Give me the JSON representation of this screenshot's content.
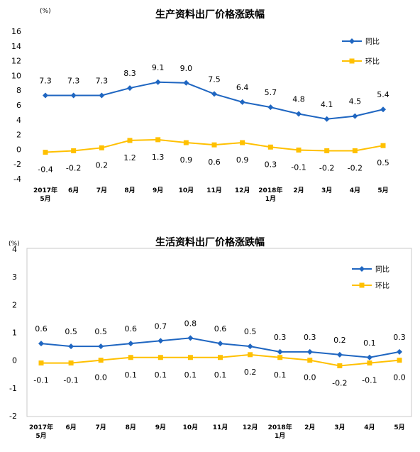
{
  "colors": {
    "yoy": "#1f66c1",
    "mom": "#ffc000",
    "frame": "#c9c9c9"
  },
  "chart_data": [
    {
      "type": "line",
      "title": "生产资料出厂价格涨跌幅",
      "unit": "(%)",
      "x": [
        "2017年|5月",
        "6月",
        "7月",
        "8月",
        "9月",
        "10月",
        "11月",
        "12月",
        "2018年|1月",
        "2月",
        "3月",
        "4月",
        "5月"
      ],
      "ylim": [
        -4,
        16
      ],
      "yticks": [
        -4,
        -2,
        0,
        2,
        4,
        6,
        8,
        10,
        12,
        14,
        16
      ],
      "grid": false,
      "legend_position": "top-right",
      "series": [
        {
          "name": "同比",
          "values": [
            7.3,
            7.3,
            7.3,
            8.3,
            9.1,
            9.0,
            7.5,
            6.4,
            5.7,
            4.8,
            4.1,
            4.5,
            5.4
          ],
          "labels": [
            "7.3",
            "7.3",
            "7.3",
            "8.3",
            "9.1",
            "9.0",
            "7.5",
            "6.4",
            "5.7",
            "4.8",
            "4.1",
            "4.5",
            "5.4"
          ]
        },
        {
          "name": "环比",
          "values": [
            -0.4,
            -0.2,
            0.2,
            1.2,
            1.3,
            0.9,
            0.6,
            0.9,
            0.3,
            -0.1,
            -0.2,
            -0.2,
            0.5
          ],
          "labels": [
            "-0.4",
            "-0.2",
            "0.2",
            "1.2",
            "1.3",
            "0.9",
            "0.6",
            "0.9",
            "0.3",
            "-0.1",
            "-0.2",
            "-0.2",
            "0.5"
          ]
        }
      ]
    },
    {
      "type": "line",
      "title": "生活资料出厂价格涨跌幅",
      "unit": "(%)",
      "x": [
        "2017年|5月",
        "6月",
        "7月",
        "8月",
        "9月",
        "10月",
        "11月",
        "12月",
        "2018年|1月",
        "2月",
        "3月",
        "4月",
        "5月"
      ],
      "ylim": [
        -2,
        4
      ],
      "yticks": [
        -2,
        -1,
        0,
        1,
        2,
        3,
        4
      ],
      "grid": false,
      "legend_position": "top-right",
      "series": [
        {
          "name": "同比",
          "values": [
            0.6,
            0.5,
            0.5,
            0.6,
            0.7,
            0.8,
            0.6,
            0.5,
            0.3,
            0.3,
            0.2,
            0.1,
            0.3
          ],
          "labels": [
            "0.6",
            "0.5",
            "0.5",
            "0.6",
            "0.7",
            "0.8",
            "0.6",
            "0.5",
            "0.3",
            "0.3",
            "0.2",
            "0.1",
            "0.3"
          ]
        },
        {
          "name": "环比",
          "values": [
            -0.1,
            -0.1,
            0.0,
            0.1,
            0.1,
            0.1,
            0.1,
            0.2,
            0.1,
            0.0,
            -0.2,
            -0.1,
            0.0
          ],
          "labels": [
            "-0.1",
            "-0.1",
            "0.0",
            "0.1",
            "0.1",
            "0.1",
            "0.1",
            "0.2",
            "0.1",
            "0.0",
            "-0.2",
            "-0.1",
            "0.0"
          ]
        }
      ]
    }
  ]
}
